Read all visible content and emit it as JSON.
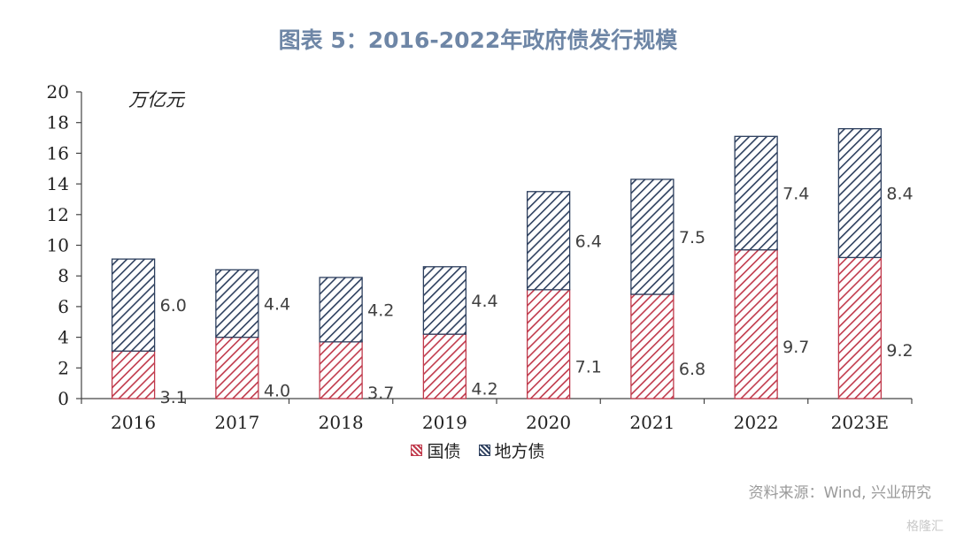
{
  "title": "图表 5：2016-2022年政府债发行规模",
  "source": "资料来源：Wind, 兴业研究",
  "watermark": "格隆汇",
  "colors": {
    "series_0": "#c0394b",
    "series_1": "#2d3f5e",
    "title": "#6e86a6"
  },
  "chart_data": {
    "type": "bar",
    "stacked": true,
    "unit_label": "万亿元",
    "categories": [
      "2016",
      "2017",
      "2018",
      "2019",
      "2020",
      "2021",
      "2022",
      "2023E"
    ],
    "series": [
      {
        "name": "国债",
        "values": [
          3.1,
          4.0,
          3.7,
          4.2,
          7.1,
          6.8,
          9.7,
          9.2
        ]
      },
      {
        "name": "地方债",
        "values": [
          6.0,
          4.4,
          4.2,
          4.4,
          6.4,
          7.5,
          7.4,
          8.4
        ]
      }
    ],
    "ylim": [
      0,
      20
    ],
    "yticks": [
      0,
      2,
      4,
      6,
      8,
      10,
      12,
      14,
      16,
      18,
      20
    ],
    "grid": false,
    "legend_position": "bottom"
  }
}
